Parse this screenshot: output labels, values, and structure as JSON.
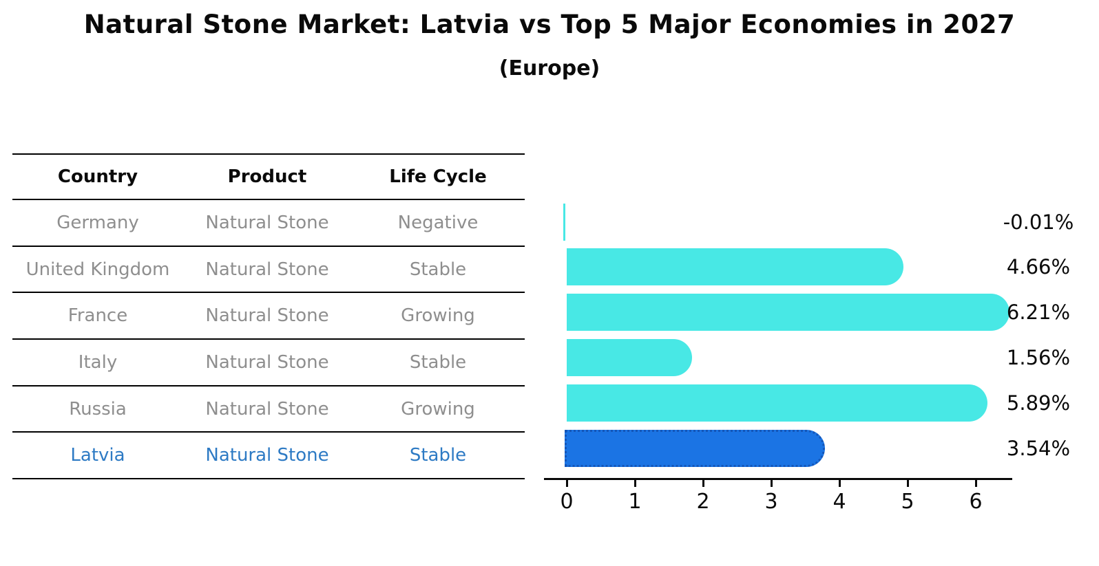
{
  "title": "Natural Stone Market: Latvia vs Top 5 Major Economies in 2027",
  "subtitle": "(Europe)",
  "table": {
    "headers": [
      "Country",
      "Product",
      "Life Cycle"
    ],
    "rows": [
      {
        "country": "Germany",
        "product": "Natural Stone",
        "life_cycle": "Negative",
        "highlighted": false
      },
      {
        "country": "United Kingdom",
        "product": "Natural Stone",
        "life_cycle": "Stable",
        "highlighted": false
      },
      {
        "country": "France",
        "product": "Natural Stone",
        "life_cycle": "Growing",
        "highlighted": false
      },
      {
        "country": "Italy",
        "product": "Natural Stone",
        "life_cycle": "Stable",
        "highlighted": false
      },
      {
        "country": "Russia",
        "product": "Natural Stone",
        "life_cycle": "Growing",
        "highlighted": false
      },
      {
        "country": "Latvia",
        "product": "Natural Stone",
        "life_cycle": "Stable",
        "highlighted": true
      }
    ]
  },
  "chart_data": {
    "type": "bar",
    "orientation": "horizontal",
    "categories": [
      "Germany",
      "United Kingdom",
      "France",
      "Italy",
      "Russia",
      "Latvia"
    ],
    "values": [
      -0.01,
      4.66,
      6.21,
      1.56,
      5.89,
      3.54
    ],
    "value_labels": [
      "-0.01%",
      "4.66%",
      "6.21%",
      "1.56%",
      "5.89%",
      "3.54%"
    ],
    "xticks": [
      "0",
      "1",
      "2",
      "3",
      "4",
      "5",
      "6"
    ],
    "xlim": [
      -0.35,
      6.6
    ],
    "grid": false,
    "legend": "none",
    "highlight_index": 5,
    "bar_color": "#48e8e5",
    "highlight_bar_color": "#1b74e4",
    "highlight_border_color": "#1456b8"
  },
  "colors": {
    "text_primary": "#0a0a0a",
    "text_muted": "#8e8e8e",
    "highlight_text": "#2d7ac4"
  }
}
